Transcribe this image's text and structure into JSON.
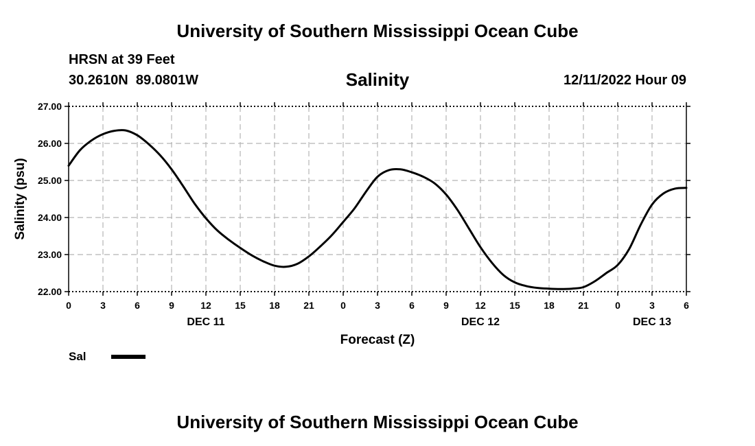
{
  "header": {
    "top_title": "University of Southern Mississippi Ocean Cube",
    "station": "HRSN at 39 Feet",
    "coords": "30.2610N  89.0801W",
    "datetime": "12/11/2022 Hour 09",
    "bottom_title": "University of Southern Mississippi Ocean Cube"
  },
  "chart_data": {
    "type": "line",
    "title": "Salinity",
    "xlabel": "Forecast (Z)",
    "ylabel": "Salinity (psu)",
    "xlim": [
      0,
      54
    ],
    "ylim": [
      22.0,
      27.0
    ],
    "x_tick_values": [
      0,
      3,
      6,
      9,
      12,
      15,
      18,
      21,
      24,
      27,
      30,
      33,
      36,
      39,
      42,
      45,
      48,
      51,
      54
    ],
    "x_tick_labels": [
      "0",
      "3",
      "6",
      "9",
      "12",
      "15",
      "18",
      "21",
      "0",
      "3",
      "6",
      "9",
      "12",
      "15",
      "18",
      "21",
      "0",
      "3",
      "6"
    ],
    "y_tick_values": [
      22.0,
      23.0,
      24.0,
      25.0,
      26.0,
      27.0
    ],
    "y_tick_labels": [
      "22.00",
      "23.00",
      "24.00",
      "25.00",
      "26.00",
      "27.00"
    ],
    "day_labels": [
      {
        "x": 12,
        "label": "DEC 11"
      },
      {
        "x": 36,
        "label": "DEC 12"
      },
      {
        "x": 51,
        "label": "DEC 13"
      }
    ],
    "grid": true,
    "legend": {
      "position": "bottom-left",
      "entries": [
        "Sal"
      ]
    },
    "series": [
      {
        "name": "Sal",
        "color": "#000000",
        "x": [
          0,
          1,
          2,
          3,
          4,
          5,
          6,
          7,
          8,
          9,
          10,
          11,
          12,
          13,
          14,
          15,
          16,
          17,
          18,
          19,
          20,
          21,
          22,
          23,
          24,
          25,
          26,
          27,
          28,
          29,
          30,
          31,
          32,
          33,
          34,
          35,
          36,
          37,
          38,
          39,
          40,
          41,
          42,
          43,
          44,
          45,
          46,
          47,
          48,
          49,
          50,
          51,
          52,
          53,
          54
        ],
        "values": [
          25.4,
          25.82,
          26.08,
          26.25,
          26.34,
          26.35,
          26.22,
          25.98,
          25.68,
          25.3,
          24.85,
          24.38,
          23.98,
          23.65,
          23.4,
          23.18,
          22.98,
          22.82,
          22.7,
          22.67,
          22.75,
          22.95,
          23.22,
          23.52,
          23.88,
          24.25,
          24.7,
          25.1,
          25.28,
          25.3,
          25.22,
          25.1,
          24.92,
          24.62,
          24.2,
          23.7,
          23.2,
          22.78,
          22.45,
          22.25,
          22.15,
          22.1,
          22.08,
          22.07,
          22.08,
          22.12,
          22.28,
          22.5,
          22.72,
          23.15,
          23.8,
          24.35,
          24.65,
          24.78,
          24.8
        ]
      }
    ]
  }
}
